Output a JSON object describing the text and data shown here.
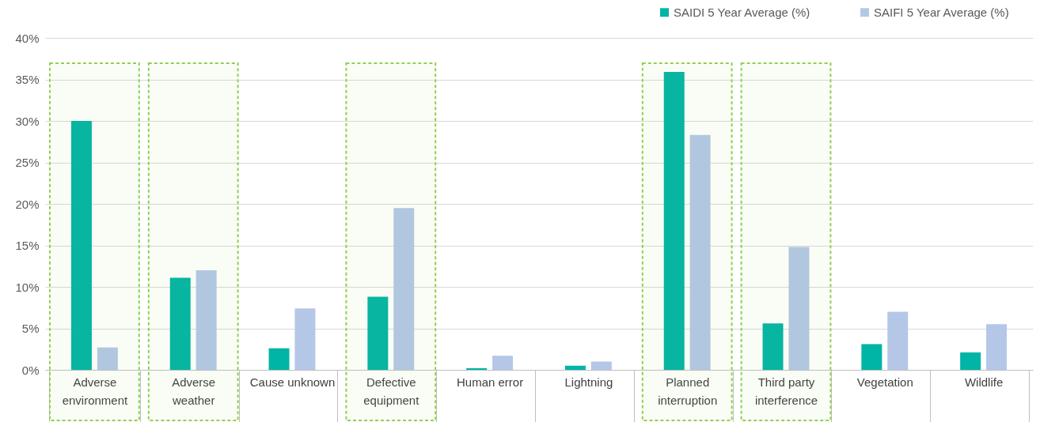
{
  "chart_data": {
    "type": "bar",
    "categories": [
      "Adverse environment",
      "Adverse weather",
      "Cause unknown",
      "Defective equipment",
      "Human error",
      "Lightning",
      "Planned interruption",
      "Third party interference",
      "Vegetation",
      "Wildlife"
    ],
    "series": [
      {
        "name": "SAIDI 5 Year Average (%)",
        "color": "#00b4a6",
        "values": [
          30.0,
          11.1,
          2.6,
          8.8,
          0.2,
          0.5,
          35.9,
          5.6,
          3.1,
          2.1
        ]
      },
      {
        "name": "SAIFI 5 Year Average (%)",
        "color": "#b4c7e7",
        "values": [
          2.7,
          12.0,
          7.4,
          19.5,
          1.7,
          1.0,
          28.3,
          14.8,
          7.0,
          5.5
        ]
      }
    ],
    "ylim": [
      0,
      40
    ],
    "yticks": [
      {
        "value": 0,
        "label": "0%"
      },
      {
        "value": 5,
        "label": "5%"
      },
      {
        "value": 10,
        "label": "10%"
      },
      {
        "value": 15,
        "label": "15%"
      },
      {
        "value": 20,
        "label": "20%"
      },
      {
        "value": 25,
        "label": "25%"
      },
      {
        "value": 30,
        "label": "30%"
      },
      {
        "value": 35,
        "label": "35%"
      },
      {
        "value": 40,
        "label": "40%"
      }
    ],
    "grid": "y",
    "legend": "top right",
    "bands": [
      {
        "axis": "x",
        "from": "Adverse environment",
        "to": "Adverse environment",
        "color": "#92d050"
      },
      {
        "axis": "x",
        "from": "Adverse weather",
        "to": "Adverse weather",
        "color": "#92d050"
      },
      {
        "axis": "x",
        "from": "Defective equipment",
        "to": "Defective equipment",
        "color": "#92d050"
      },
      {
        "axis": "x",
        "from": "Planned interruption",
        "to": "Planned interruption",
        "color": "#92d050"
      },
      {
        "axis": "x",
        "from": "Third party interference",
        "to": "Third party interference",
        "color": "#92d050"
      }
    ]
  }
}
